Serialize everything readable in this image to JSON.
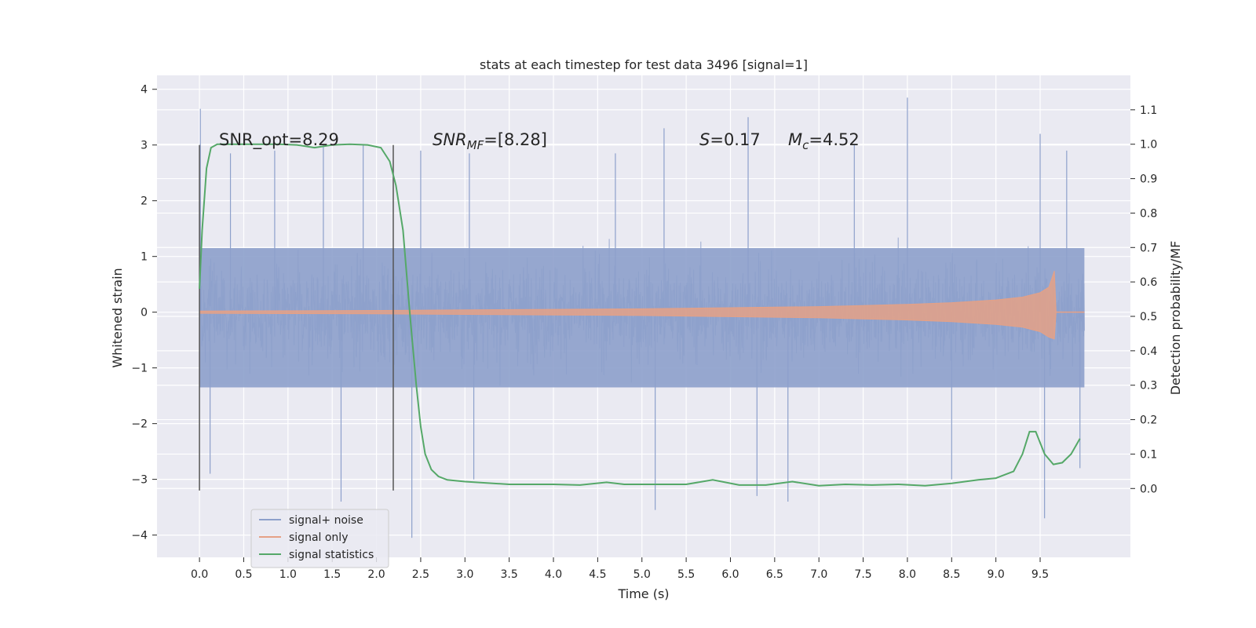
{
  "chart_data": {
    "type": "line",
    "title": "stats at each timestep for test data 3496 [signal=1]",
    "xlabel": "Time (s)",
    "ylabel": "Whitened strain",
    "y2label": "Detection probability/MF",
    "xlim": [
      -0.48,
      10.52
    ],
    "ylim": [
      -4.4,
      4.25
    ],
    "y2lim": [
      -0.2,
      1.2
    ],
    "x_ticks": [
      0.0,
      0.5,
      1.0,
      1.5,
      2.0,
      2.5,
      3.0,
      3.5,
      4.0,
      4.5,
      5.0,
      5.5,
      6.0,
      6.5,
      7.0,
      7.5,
      8.0,
      8.5,
      9.0,
      9.5
    ],
    "x_tick_labels": [
      "0.0",
      "0.5",
      "1.0",
      "1.5",
      "2.0",
      "2.5",
      "3.0",
      "3.5",
      "4.0",
      "4.5",
      "5.0",
      "5.5",
      "6.0",
      "6.5",
      "7.0",
      "7.5",
      "8.0",
      "8.5",
      "9.0",
      "9.5"
    ],
    "y_ticks": [
      4,
      3,
      2,
      1,
      0,
      -1,
      -2,
      -3,
      -4
    ],
    "y_tick_labels": [
      "4",
      "3",
      "2",
      "1",
      "0",
      "−1",
      "−2",
      "−3",
      "−4"
    ],
    "y2_ticks": [
      1.1,
      1.0,
      0.9,
      0.8,
      0.7,
      0.6,
      0.5,
      0.4,
      0.3,
      0.2,
      0.1,
      0.0
    ],
    "y2_tick_labels": [
      "1.1",
      "1.0",
      "0.9",
      "0.8",
      "0.7",
      "0.6",
      "0.5",
      "0.4",
      "0.3",
      "0.2",
      "0.1",
      "0.0"
    ],
    "grid": true,
    "legend_position": "lower-left",
    "annotations": {
      "snr_opt": "SNR_opt=8.29",
      "snr_mf_main": "SNR",
      "snr_mf_sub": "MF",
      "snr_mf_rest": "=[8.28]",
      "s_main": "S",
      "s_rest": "=0.17",
      "mc_main": "M",
      "mc_sub": "c",
      "mc_rest": "=4.52"
    },
    "vertical_markers": [
      {
        "x": 0.0,
        "y_range": [
          -3.2,
          3.0
        ]
      },
      {
        "x": 2.19,
        "y_range": [
          -3.2,
          3.0
        ]
      }
    ],
    "series": [
      {
        "name": "signal+ noise",
        "color": "#8da0cb",
        "x_range": [
          0.0,
          10.0
        ],
        "dense_band": [
          -1.35,
          1.15
        ],
        "peaks": [
          {
            "x": 0.01,
            "y": 3.65
          },
          {
            "x": 0.35,
            "y": 2.85
          },
          {
            "x": 0.85,
            "y": 2.9
          },
          {
            "x": 1.4,
            "y": 3.0
          },
          {
            "x": 1.85,
            "y": 3.0
          },
          {
            "x": 2.5,
            "y": 2.9
          },
          {
            "x": 3.05,
            "y": 2.85
          },
          {
            "x": 4.7,
            "y": 2.85
          },
          {
            "x": 5.25,
            "y": 3.3
          },
          {
            "x": 6.2,
            "y": 3.5
          },
          {
            "x": 7.4,
            "y": 3.0
          },
          {
            "x": 8.0,
            "y": 3.85
          },
          {
            "x": 9.5,
            "y": 3.2
          },
          {
            "x": 9.8,
            "y": 2.9
          }
        ],
        "troughs": [
          {
            "x": 0.12,
            "y": -2.9
          },
          {
            "x": 1.6,
            "y": -3.4
          },
          {
            "x": 2.4,
            "y": -4.05
          },
          {
            "x": 3.1,
            "y": -3.0
          },
          {
            "x": 5.15,
            "y": -3.55
          },
          {
            "x": 6.3,
            "y": -3.3
          },
          {
            "x": 6.65,
            "y": -3.4
          },
          {
            "x": 8.5,
            "y": -3.0
          },
          {
            "x": 9.55,
            "y": -3.7
          },
          {
            "x": 9.95,
            "y": -2.8
          }
        ]
      },
      {
        "name": "signal only",
        "color": "#e5a186",
        "x": [
          0.0,
          1.0,
          2.0,
          3.0,
          4.0,
          5.0,
          6.0,
          7.0,
          7.5,
          8.0,
          8.5,
          9.0,
          9.3,
          9.5,
          9.6,
          9.66,
          9.68
        ],
        "amplitude": [
          0.02,
          0.025,
          0.03,
          0.04,
          0.05,
          0.06,
          0.08,
          0.1,
          0.12,
          0.14,
          0.17,
          0.22,
          0.27,
          0.35,
          0.45,
          0.74,
          0.0
        ]
      },
      {
        "name": "signal statistics",
        "color": "#55a868",
        "axis": "right",
        "x": [
          0.0,
          0.03,
          0.08,
          0.13,
          0.2,
          0.4,
          0.7,
          0.9,
          1.1,
          1.3,
          1.5,
          1.7,
          1.9,
          2.05,
          2.15,
          2.22,
          2.3,
          2.38,
          2.45,
          2.5,
          2.55,
          2.62,
          2.7,
          2.8,
          3.0,
          3.5,
          4.0,
          4.3,
          4.6,
          4.8,
          5.0,
          5.3,
          5.5,
          5.8,
          6.1,
          6.4,
          6.7,
          7.0,
          7.3,
          7.6,
          7.9,
          8.2,
          8.5,
          8.8,
          9.0,
          9.2,
          9.3,
          9.38,
          9.45,
          9.55,
          9.65,
          9.75,
          9.85,
          9.95
        ],
        "y": [
          0.58,
          0.75,
          0.93,
          0.99,
          1.0,
          1.0,
          1.0,
          1.0,
          0.998,
          0.99,
          0.998,
          1.0,
          0.998,
          0.99,
          0.95,
          0.88,
          0.75,
          0.5,
          0.3,
          0.18,
          0.1,
          0.055,
          0.035,
          0.025,
          0.02,
          0.012,
          0.012,
          0.01,
          0.018,
          0.012,
          0.012,
          0.012,
          0.012,
          0.025,
          0.01,
          0.01,
          0.02,
          0.008,
          0.012,
          0.01,
          0.012,
          0.008,
          0.015,
          0.025,
          0.03,
          0.05,
          0.1,
          0.165,
          0.165,
          0.1,
          0.07,
          0.075,
          0.1,
          0.145
        ]
      }
    ]
  }
}
